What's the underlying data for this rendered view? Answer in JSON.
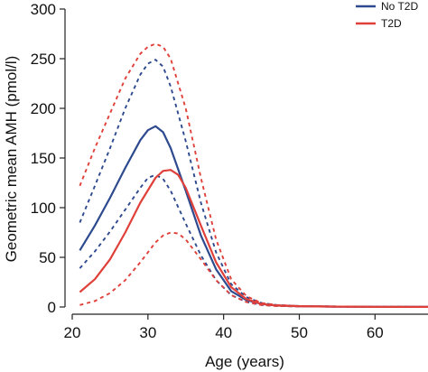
{
  "chart_data": {
    "type": "line",
    "xlabel": "Age (years)",
    "ylabel": "Geometric mean AMH (pmol/l)",
    "xlim": [
      20,
      67
    ],
    "ylim": [
      0,
      300
    ],
    "x_ticks": [
      20,
      30,
      40,
      50,
      60
    ],
    "y_ticks": [
      0,
      50,
      100,
      150,
      200,
      250,
      300
    ],
    "grid": false,
    "legend_position": "top-right",
    "legend": [
      {
        "label": "No T2D",
        "color": "#2e4a8f"
      },
      {
        "label": "T2D",
        "color": "#e0403a"
      }
    ],
    "series": [
      {
        "name": "No T2D",
        "style": "solid",
        "color": "#2e4a8f",
        "x": [
          21,
          23,
          25,
          27,
          29,
          30,
          31,
          32,
          33,
          35,
          37,
          39,
          41,
          43,
          45,
          47,
          50,
          55,
          60,
          67
        ],
        "y": [
          57,
          82,
          110,
          140,
          168,
          178,
          182,
          176,
          160,
          117,
          72,
          38,
          16,
          7,
          3,
          1.5,
          0.8,
          0.4,
          0.2,
          0.1
        ]
      },
      {
        "name": "No T2D upper",
        "style": "dashed",
        "color": "#2e4a8f",
        "x": [
          21,
          23,
          25,
          27,
          29,
          30,
          31,
          32,
          33,
          35,
          37,
          39,
          41,
          43,
          45,
          47,
          50,
          55,
          60,
          67
        ],
        "y": [
          85,
          122,
          160,
          200,
          234,
          245,
          249,
          242,
          222,
          167,
          105,
          55,
          23,
          10,
          4,
          2,
          1,
          0.5,
          0.3,
          0.2
        ]
      },
      {
        "name": "No T2D lower",
        "style": "dashed",
        "color": "#2e4a8f",
        "x": [
          21,
          23,
          25,
          27,
          29,
          30,
          31,
          32,
          33,
          35,
          37,
          39,
          41,
          43,
          45,
          47,
          50,
          55,
          60,
          67
        ],
        "y": [
          39,
          56,
          76,
          98,
          120,
          130,
          133,
          129,
          117,
          84,
          52,
          27,
          12,
          5,
          2,
          1,
          0.5,
          0.3,
          0.1,
          0.1
        ]
      },
      {
        "name": "T2D",
        "style": "solid",
        "color": "#e0403a",
        "x": [
          21,
          23,
          25,
          27,
          29,
          31,
          32,
          33,
          34,
          35,
          37,
          39,
          41,
          43,
          45,
          47,
          50,
          55,
          60,
          67
        ],
        "y": [
          15,
          28,
          48,
          75,
          105,
          130,
          137,
          138,
          133,
          120,
          82,
          45,
          20,
          8,
          3,
          1.5,
          0.8,
          0.4,
          0.2,
          0.1
        ]
      },
      {
        "name": "T2D upper",
        "style": "dashed",
        "color": "#e0403a",
        "x": [
          21,
          23,
          25,
          27,
          29,
          30,
          31,
          32,
          33,
          35,
          37,
          39,
          41,
          43,
          45,
          47,
          50,
          55,
          60,
          67
        ],
        "y": [
          122,
          160,
          195,
          230,
          255,
          262,
          265,
          262,
          250,
          200,
          130,
          68,
          28,
          11,
          4,
          2,
          1,
          0.5,
          0.3,
          0.2
        ]
      },
      {
        "name": "T2D lower",
        "style": "dashed",
        "color": "#e0403a",
        "x": [
          21,
          23,
          25,
          27,
          29,
          31,
          32,
          33,
          34,
          35,
          37,
          39,
          41,
          43,
          45,
          47,
          50,
          55,
          60,
          67
        ],
        "y": [
          2,
          6,
          14,
          27,
          45,
          65,
          72,
          75,
          74,
          68,
          48,
          27,
          12,
          5,
          2,
          1,
          0.5,
          0.3,
          0.1,
          0.1
        ]
      }
    ]
  }
}
